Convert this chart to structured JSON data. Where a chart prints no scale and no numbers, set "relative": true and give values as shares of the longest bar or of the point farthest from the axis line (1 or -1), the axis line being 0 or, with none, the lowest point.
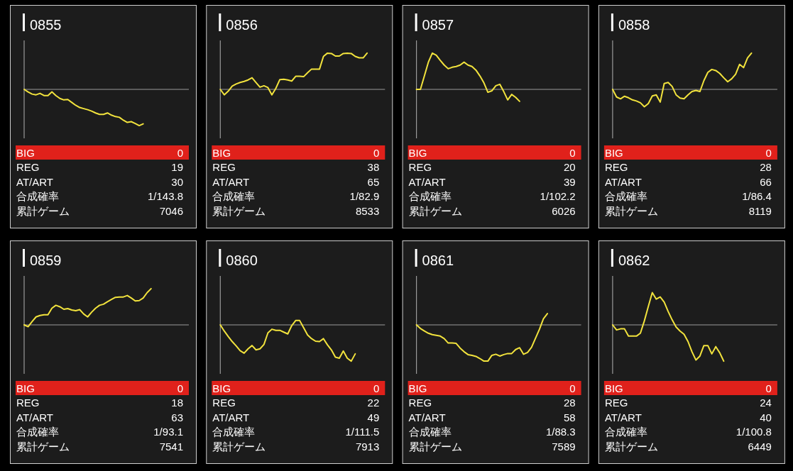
{
  "chart_data": [
    {
      "type": "line",
      "title": "0855",
      "relative": true,
      "categories": [
        null,
        null,
        null,
        null,
        null,
        null,
        null,
        null,
        null,
        null,
        null,
        null,
        null,
        null,
        null,
        null,
        null,
        null,
        null,
        null,
        null,
        null,
        null,
        null,
        null,
        null,
        null,
        null,
        null,
        null,
        null,
        null,
        null,
        null,
        null,
        null,
        null,
        null,
        null,
        null
      ],
      "series": [
        {
          "color": "#f2e33d",
          "values": [
            0,
            -0.07,
            -0.13,
            -0.15,
            -0.11,
            -0.17,
            -0.17,
            -0.07,
            -0.17,
            -0.25,
            -0.29,
            -0.28,
            -0.36,
            -0.44,
            -0.5,
            -0.53,
            -0.56,
            -0.6,
            -0.65,
            -0.69,
            -0.69,
            -0.65,
            -0.71,
            -0.75,
            -0.77,
            -0.85,
            -0.91,
            -0.89,
            -0.94,
            -1,
            -0.95,
            null,
            null,
            null,
            null,
            null,
            null,
            null,
            null,
            null
          ]
        }
      ],
      "annotations": [
        "BIG",
        "0",
        "REG",
        "19",
        "AT/ART",
        "30",
        "合成確率",
        "1/143.8",
        "累計ゲーム",
        "7046"
      ]
    },
    {
      "type": "line",
      "title": "0856",
      "relative": true,
      "categories": [
        null,
        null,
        null,
        null,
        null,
        null,
        null,
        null,
        null,
        null,
        null,
        null,
        null,
        null,
        null,
        null,
        null,
        null,
        null,
        null,
        null,
        null,
        null,
        null,
        null,
        null,
        null,
        null,
        null,
        null,
        null,
        null,
        null,
        null,
        null,
        null,
        null,
        null,
        null,
        null
      ],
      "series": [
        {
          "color": "#f2e33d",
          "values": [
            0,
            -0.15,
            -0.05,
            0.09,
            0.15,
            0.19,
            0.22,
            0.26,
            0.32,
            0.19,
            0.06,
            0.1,
            0.05,
            -0.15,
            0.03,
            0.27,
            0.28,
            0.26,
            0.23,
            0.36,
            0.36,
            0.35,
            0.46,
            0.56,
            0.56,
            0.56,
            0.91,
            1,
            0.99,
            0.92,
            0.92,
            0.99,
            1,
            0.99,
            0.91,
            0.87,
            0.87,
            1,
            null,
            null
          ]
        }
      ],
      "annotations": [
        "BIG",
        "0",
        "REG",
        "38",
        "AT/ART",
        "65",
        "合成確率",
        "1/82.9",
        "累計ゲーム",
        "8533"
      ]
    },
    {
      "type": "line",
      "title": "0857",
      "relative": true,
      "categories": [
        null,
        null,
        null,
        null,
        null,
        null,
        null,
        null,
        null,
        null,
        null,
        null,
        null,
        null,
        null,
        null,
        null,
        null,
        null,
        null,
        null,
        null,
        null,
        null,
        null,
        null,
        null,
        null,
        null,
        null,
        null,
        null,
        null,
        null,
        null,
        null,
        null,
        null,
        null,
        null
      ],
      "series": [
        {
          "color": "#f2e33d",
          "values": [
            0,
            0,
            0.37,
            0.75,
            1,
            0.94,
            0.8,
            0.67,
            0.57,
            0.61,
            0.63,
            0.67,
            0.75,
            0.67,
            0.63,
            0.53,
            0.37,
            0.18,
            -0.08,
            -0.04,
            0.1,
            0.14,
            -0.06,
            -0.29,
            -0.14,
            -0.22,
            -0.33,
            null,
            null,
            null,
            null,
            null,
            null,
            null,
            null,
            null,
            null,
            null,
            null,
            null
          ]
        }
      ],
      "annotations": [
        "BIG",
        "0",
        "REG",
        "20",
        "AT/ART",
        "39",
        "合成確率",
        "1/102.2",
        "累計ゲーム",
        "6026"
      ]
    },
    {
      "type": "line",
      "title": "0858",
      "relative": true,
      "categories": [
        null,
        null,
        null,
        null,
        null,
        null,
        null,
        null,
        null,
        null,
        null,
        null,
        null,
        null,
        null,
        null,
        null,
        null,
        null,
        null,
        null,
        null,
        null,
        null,
        null,
        null,
        null,
        null,
        null,
        null,
        null,
        null,
        null,
        null,
        null,
        null,
        null,
        null,
        null,
        null
      ],
      "series": [
        {
          "color": "#f2e33d",
          "values": [
            0,
            -0.21,
            -0.26,
            -0.19,
            -0.23,
            -0.29,
            -0.32,
            -0.37,
            -0.48,
            -0.39,
            -0.18,
            -0.15,
            -0.35,
            0.16,
            0.19,
            0.08,
            -0.15,
            -0.24,
            -0.26,
            -0.15,
            -0.06,
            -0.03,
            -0.06,
            0.24,
            0.47,
            0.55,
            0.52,
            0.44,
            0.32,
            0.21,
            0.29,
            0.42,
            0.69,
            0.6,
            0.87,
            1,
            null,
            null,
            null,
            null
          ]
        }
      ],
      "annotations": [
        "BIG",
        "0",
        "REG",
        "28",
        "AT/ART",
        "66",
        "合成確率",
        "1/86.4",
        "累計ゲーム",
        "8119"
      ]
    },
    {
      "type": "line",
      "title": "0859",
      "relative": true,
      "categories": [
        null,
        null,
        null,
        null,
        null,
        null,
        null,
        null,
        null,
        null,
        null,
        null,
        null,
        null,
        null,
        null,
        null,
        null,
        null,
        null,
        null,
        null,
        null,
        null,
        null,
        null,
        null,
        null,
        null,
        null,
        null,
        null,
        null,
        null,
        null,
        null,
        null,
        null,
        null,
        null
      ],
      "series": [
        {
          "color": "#f2e33d",
          "values": [
            0,
            -0.05,
            0.09,
            0.22,
            0.26,
            0.28,
            0.28,
            0.46,
            0.54,
            0.5,
            0.43,
            0.45,
            0.41,
            0.39,
            0.42,
            0.3,
            0.22,
            0.35,
            0.46,
            0.54,
            0.57,
            0.64,
            0.7,
            0.76,
            0.77,
            0.77,
            0.81,
            0.74,
            0.66,
            0.67,
            0.74,
            0.89,
            1,
            null,
            null,
            null,
            null,
            null,
            null,
            null
          ]
        }
      ],
      "annotations": [
        "BIG",
        "0",
        "REG",
        "18",
        "AT/ART",
        "63",
        "合成確率",
        "1/93.1",
        "累計ゲーム",
        "7541"
      ]
    },
    {
      "type": "line",
      "title": "0860",
      "relative": true,
      "categories": [
        null,
        null,
        null,
        null,
        null,
        null,
        null,
        null,
        null,
        null,
        null,
        null,
        null,
        null,
        null,
        null,
        null,
        null,
        null,
        null,
        null,
        null,
        null,
        null,
        null,
        null,
        null,
        null,
        null,
        null,
        null,
        null,
        null,
        null,
        null,
        null,
        null,
        null,
        null,
        null
      ],
      "series": [
        {
          "color": "#f2e33d",
          "values": [
            0,
            -0.17,
            -0.32,
            -0.46,
            -0.58,
            -0.71,
            -0.78,
            -0.66,
            -0.57,
            -0.69,
            -0.66,
            -0.54,
            -0.22,
            -0.12,
            -0.15,
            -0.15,
            -0.2,
            -0.25,
            -0.02,
            0.12,
            0.12,
            -0.08,
            -0.28,
            -0.38,
            -0.45,
            -0.46,
            -0.38,
            -0.55,
            -0.69,
            -0.89,
            -0.92,
            -0.72,
            -0.92,
            -1,
            -0.8,
            null,
            null,
            null,
            null,
            null
          ]
        }
      ],
      "annotations": [
        "BIG",
        "0",
        "REG",
        "22",
        "AT/ART",
        "49",
        "合成確率",
        "1/111.5",
        "累計ゲーム",
        "7913"
      ]
    },
    {
      "type": "line",
      "title": "0861",
      "relative": true,
      "categories": [
        null,
        null,
        null,
        null,
        null,
        null,
        null,
        null,
        null,
        null,
        null,
        null,
        null,
        null,
        null,
        null,
        null,
        null,
        null,
        null,
        null,
        null,
        null,
        null,
        null,
        null,
        null,
        null,
        null,
        null,
        null,
        null,
        null,
        null,
        null,
        null,
        null,
        null,
        null,
        null
      ],
      "series": [
        {
          "color": "#f2e33d",
          "values": [
            0,
            -0.1,
            -0.17,
            -0.23,
            -0.27,
            -0.29,
            -0.31,
            -0.38,
            -0.5,
            -0.5,
            -0.51,
            -0.64,
            -0.74,
            -0.82,
            -0.84,
            -0.87,
            -0.93,
            -1,
            -1,
            -0.84,
            -0.81,
            -0.86,
            -0.82,
            -0.79,
            -0.79,
            -0.68,
            -0.63,
            -0.81,
            -0.76,
            -0.62,
            -0.37,
            -0.12,
            0.17,
            0.31,
            null,
            null,
            null,
            null,
            null,
            null
          ]
        }
      ],
      "annotations": [
        "BIG",
        "0",
        "REG",
        "28",
        "AT/ART",
        "58",
        "合成確率",
        "1/88.3",
        "累計ゲーム",
        "7589"
      ]
    },
    {
      "type": "line",
      "title": "0862",
      "relative": true,
      "categories": [
        null,
        null,
        null,
        null,
        null,
        null,
        null,
        null,
        null,
        null,
        null,
        null,
        null,
        null,
        null,
        null,
        null,
        null,
        null,
        null,
        null,
        null,
        null,
        null,
        null,
        null,
        null,
        null,
        null,
        null,
        null,
        null,
        null,
        null,
        null,
        null,
        null,
        null,
        null,
        null
      ],
      "series": [
        {
          "color": "#f2e33d",
          "values": [
            0,
            -0.14,
            -0.11,
            -0.11,
            -0.31,
            -0.31,
            -0.31,
            -0.23,
            0.11,
            0.51,
            0.89,
            0.71,
            0.77,
            0.63,
            0.37,
            0.14,
            -0.06,
            -0.17,
            -0.26,
            -0.46,
            -0.74,
            -0.97,
            -0.86,
            -0.57,
            -0.57,
            -0.8,
            -0.6,
            -0.77,
            -1,
            null,
            null,
            null,
            null,
            null,
            null,
            null,
            null,
            null,
            null,
            null
          ]
        }
      ],
      "annotations": [
        "BIG",
        "0",
        "REG",
        "24",
        "AT/ART",
        "40",
        "合成確率",
        "1/100.8",
        "累計ゲーム",
        "6449"
      ]
    }
  ]
}
